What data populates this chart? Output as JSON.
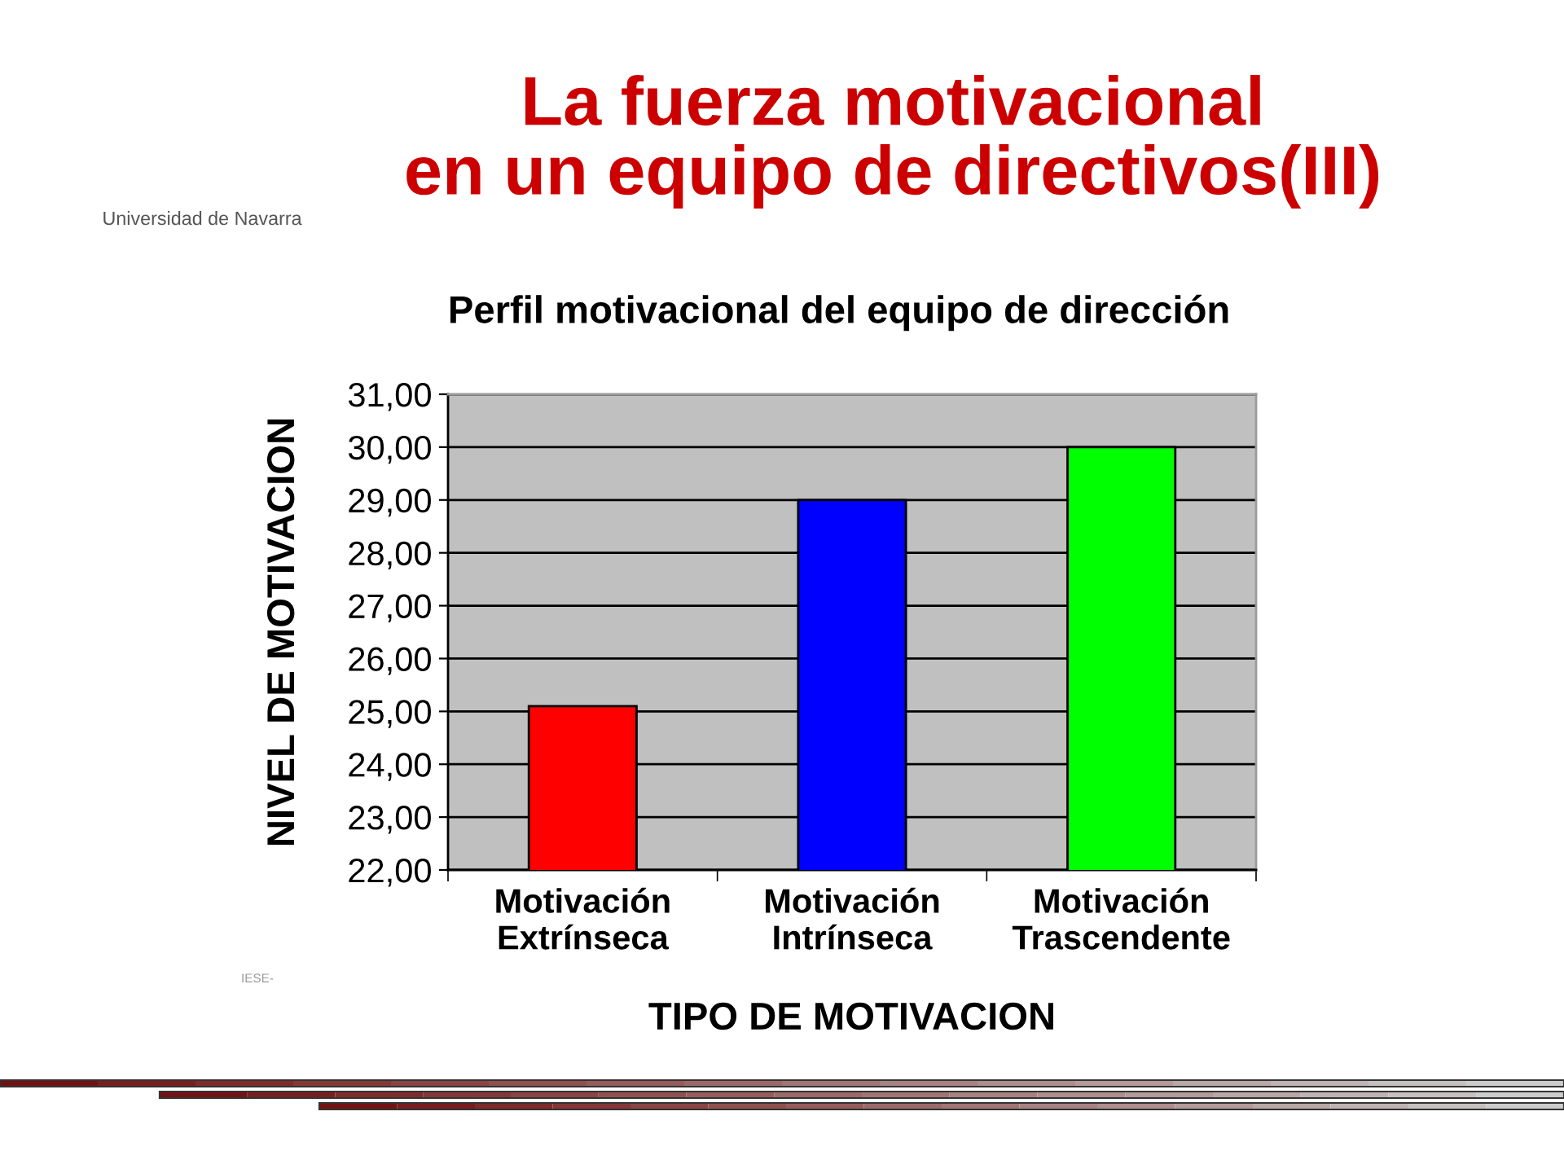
{
  "chart_data": {
    "type": "bar",
    "title": "La fuerza motivacional\nen un equipo de directivos(III)",
    "subtitle": "Perfil motivacional del equipo de dirección",
    "xlabel": "TIPO DE MOTIVACION",
    "ylabel": "NIVEL DE MOTIVACION",
    "categories": [
      "Motivación\nExtrínseca",
      "Motivación\nIntrínseca",
      "Motivación\nTrascendente"
    ],
    "values": [
      25.1,
      29.0,
      30.0
    ],
    "colors": [
      "#ff0000",
      "#0000ff",
      "#00ff00"
    ],
    "ylim": [
      22,
      31
    ],
    "yticks": [
      {
        "value": 22,
        "label": "22,00"
      },
      {
        "value": 23,
        "label": "23,00"
      },
      {
        "value": 24,
        "label": "24,00"
      },
      {
        "value": 25,
        "label": "25,00"
      },
      {
        "value": 26,
        "label": "26,00"
      },
      {
        "value": 27,
        "label": "27,00"
      },
      {
        "value": 28,
        "label": "28,00"
      },
      {
        "value": 29,
        "label": "29,00"
      },
      {
        "value": 30,
        "label": "30,00"
      },
      {
        "value": 31,
        "label": "31,00"
      }
    ],
    "grid": "y",
    "annotations": [
      "Universidad de Navarra",
      "IESE-"
    ]
  }
}
